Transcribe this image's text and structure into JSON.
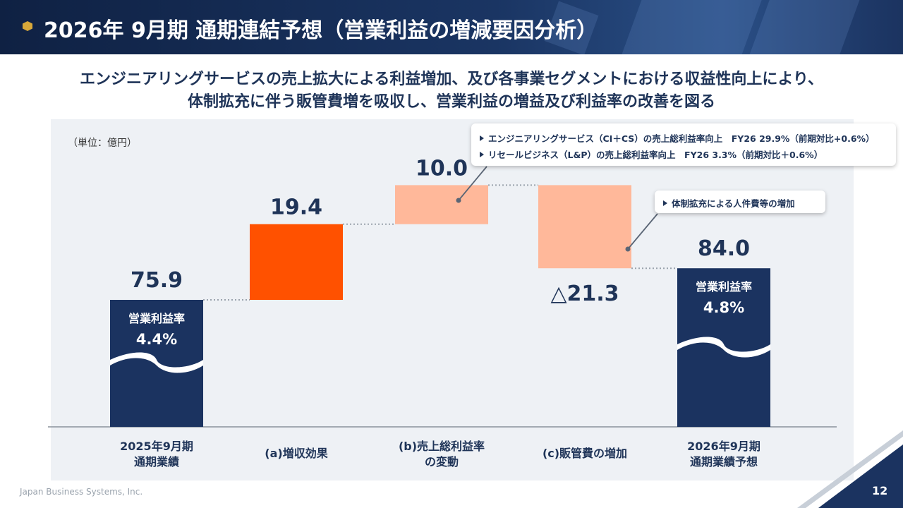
{
  "header": {
    "title": "2026年 9月期 通期連結予想（営業利益の増減要因分析）"
  },
  "subtitle": {
    "line1": "エンジニアリングサービスの売上拡大による利益増加、及び各事業セグメントにおける収益性向上により、",
    "line2": "体制拡充に伴う販管費増を吸収し、営業利益の増益及び利益率の改善を図る"
  },
  "unit_label": "（単位：億円）",
  "callouts": {
    "gross_margin": [
      "エンジニアリングサービス（CI＋CS）の売上総利益率向上　FY26 29.9%（前期対比+0.6%）",
      "リセールビジネス（L&P）の売上総利益率向上　FY26 3.3%（前期対比＋0.6%）"
    ],
    "sga": [
      "体制拡充による人件費等の増加"
    ]
  },
  "colors": {
    "navy": "#1b3360",
    "orange": "#ff5100",
    "salmon": "#ffb89a",
    "text": "#1f3458"
  },
  "chart_data": {
    "type": "bar",
    "subtype": "waterfall",
    "categories": [
      "2025年9月期\n通期業績",
      "(a)増収効果",
      "(b)売上総利益率\nの変動",
      "(c)販管費の増加",
      "2026年9月期\n通期業績予想"
    ],
    "steps": [
      {
        "kind": "total",
        "value": 75.9,
        "label": "75.9",
        "sub_label": "営業利益率",
        "sub_value": "4.4%"
      },
      {
        "kind": "increase",
        "value": 19.4,
        "label": "19.4"
      },
      {
        "kind": "increase",
        "value": 10.0,
        "label": "10.0"
      },
      {
        "kind": "decrease",
        "value": -21.3,
        "label": "△21.3"
      },
      {
        "kind": "total",
        "value": 84.0,
        "label": "84.0",
        "sub_label": "営業利益率",
        "sub_value": "4.8%"
      }
    ]
  },
  "footer": {
    "company": "Japan Business Systems, Inc.",
    "page": "12"
  }
}
